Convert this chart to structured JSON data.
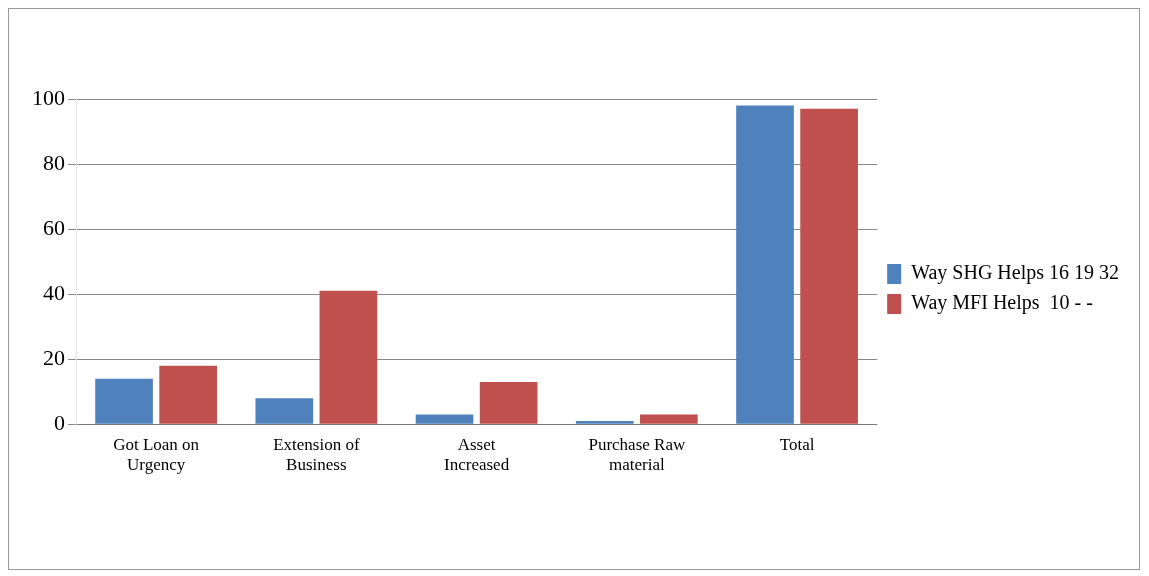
{
  "chart_data": {
    "type": "bar",
    "categories": [
      "Got Loan on Urgency",
      "Extension of Business",
      "Asset Increased",
      "Purchase Raw material",
      "Total"
    ],
    "series": [
      {
        "name": "Way SHG Helps 16 19 32",
        "color": "#4f81bd",
        "values": [
          14,
          8,
          3,
          1,
          98
        ]
      },
      {
        "name": "Way MFI Helps  10 - -",
        "color": "#c0504d",
        "values": [
          18,
          41,
          13,
          3,
          97
        ]
      }
    ],
    "ylim": [
      0,
      100
    ],
    "yticks": [
      0,
      20,
      40,
      60,
      80,
      100
    ],
    "grid": "y",
    "legend": "right"
  }
}
